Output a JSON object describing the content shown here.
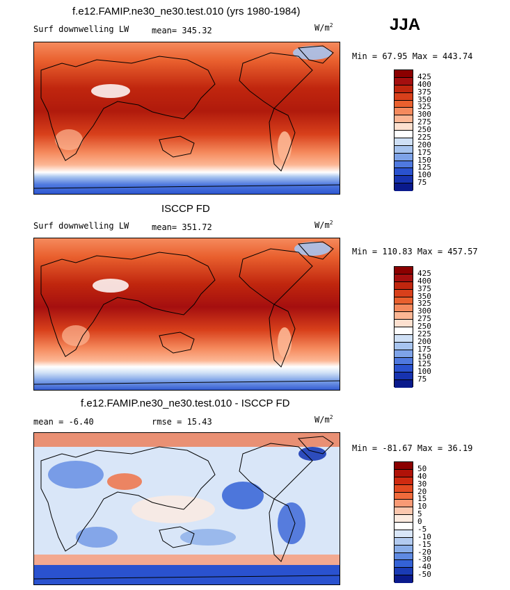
{
  "season": "JJA",
  "panels": [
    {
      "title": "f.e12.FAMIP.ne30_ne30.test.010 (yrs 1980-1984)",
      "left_label": "Surf downwelling LW",
      "center_label": "mean= 345.32",
      "units": "W/m",
      "units_sup": "2",
      "minmax": "Min =  67.95 Max = 443.74",
      "colorbar": {
        "labels": [
          "425",
          "400",
          "375",
          "350",
          "325",
          "300",
          "275",
          "250",
          "225",
          "200",
          "175",
          "150",
          "125",
          "100",
          "75"
        ],
        "colors": [
          "#8b0000",
          "#a50f0f",
          "#c0260e",
          "#d8401b",
          "#e9602e",
          "#f58a5d",
          "#fcb694",
          "#fde0cf",
          "#ffffff",
          "#cfe0f6",
          "#a7c4ef",
          "#7ea3e8",
          "#4f79df",
          "#2a52cf",
          "#1733b0",
          "#0a1a8c"
        ]
      }
    },
    {
      "title": "ISCCP FD",
      "left_label": "Surf downwelling LW",
      "center_label": "mean= 351.72",
      "units": "W/m",
      "units_sup": "2",
      "minmax": "Min = 110.83 Max = 457.57",
      "colorbar": {
        "labels": [
          "425",
          "400",
          "375",
          "350",
          "325",
          "300",
          "275",
          "250",
          "225",
          "200",
          "175",
          "150",
          "125",
          "100",
          "75"
        ],
        "colors": [
          "#8b0000",
          "#a50f0f",
          "#c0260e",
          "#d8401b",
          "#e9602e",
          "#f58a5d",
          "#fcb694",
          "#fde0cf",
          "#ffffff",
          "#cfe0f6",
          "#a7c4ef",
          "#7ea3e8",
          "#4f79df",
          "#2a52cf",
          "#1733b0",
          "#0a1a8c"
        ]
      }
    },
    {
      "title": "f.e12.FAMIP.ne30_ne30.test.010 - ISCCP FD",
      "left_label": "mean =  -6.40",
      "center_label": "rmse =  15.43",
      "units": "W/m",
      "units_sup": "2",
      "minmax": "Min = -81.67 Max =  36.19",
      "colorbar": {
        "labels": [
          "50",
          "40",
          "30",
          "20",
          "15",
          "10",
          "5",
          "0",
          "-5",
          "-10",
          "-15",
          "-20",
          "-30",
          "-40",
          "-50"
        ],
        "colors": [
          "#8b0000",
          "#b01208",
          "#cf2a10",
          "#e34a21",
          "#f06b3c",
          "#f99a75",
          "#fcc7ae",
          "#fdebe0",
          "#ffffff",
          "#d9e6f8",
          "#b3cbf0",
          "#8aaee9",
          "#5f8ae2",
          "#3462d6",
          "#1a3bb5",
          "#0a1a8c"
        ]
      }
    }
  ],
  "chart_data": [
    {
      "type": "heatmap",
      "title": "f.e12.FAMIP.ne30_ne30.test.010 (yrs 1980-1984)",
      "variable": "Surf downwelling LW",
      "units": "W/m2",
      "mean": 345.32,
      "min": 67.95,
      "max": 443.74,
      "levels": [
        75,
        100,
        125,
        150,
        175,
        200,
        225,
        250,
        275,
        300,
        325,
        350,
        375,
        400,
        425
      ]
    },
    {
      "type": "heatmap",
      "title": "ISCCP FD",
      "variable": "Surf downwelling LW",
      "units": "W/m2",
      "mean": 351.72,
      "min": 110.83,
      "max": 457.57,
      "levels": [
        75,
        100,
        125,
        150,
        175,
        200,
        225,
        250,
        275,
        300,
        325,
        350,
        375,
        400,
        425
      ]
    },
    {
      "type": "heatmap",
      "title": "f.e12.FAMIP.ne30_ne30.test.010 - ISCCP FD",
      "units": "W/m2",
      "mean": -6.4,
      "rmse": 15.43,
      "min": -81.67,
      "max": 36.19,
      "levels": [
        -50,
        -40,
        -30,
        -20,
        -15,
        -10,
        -5,
        0,
        5,
        10,
        15,
        20,
        30,
        40,
        50
      ]
    }
  ]
}
